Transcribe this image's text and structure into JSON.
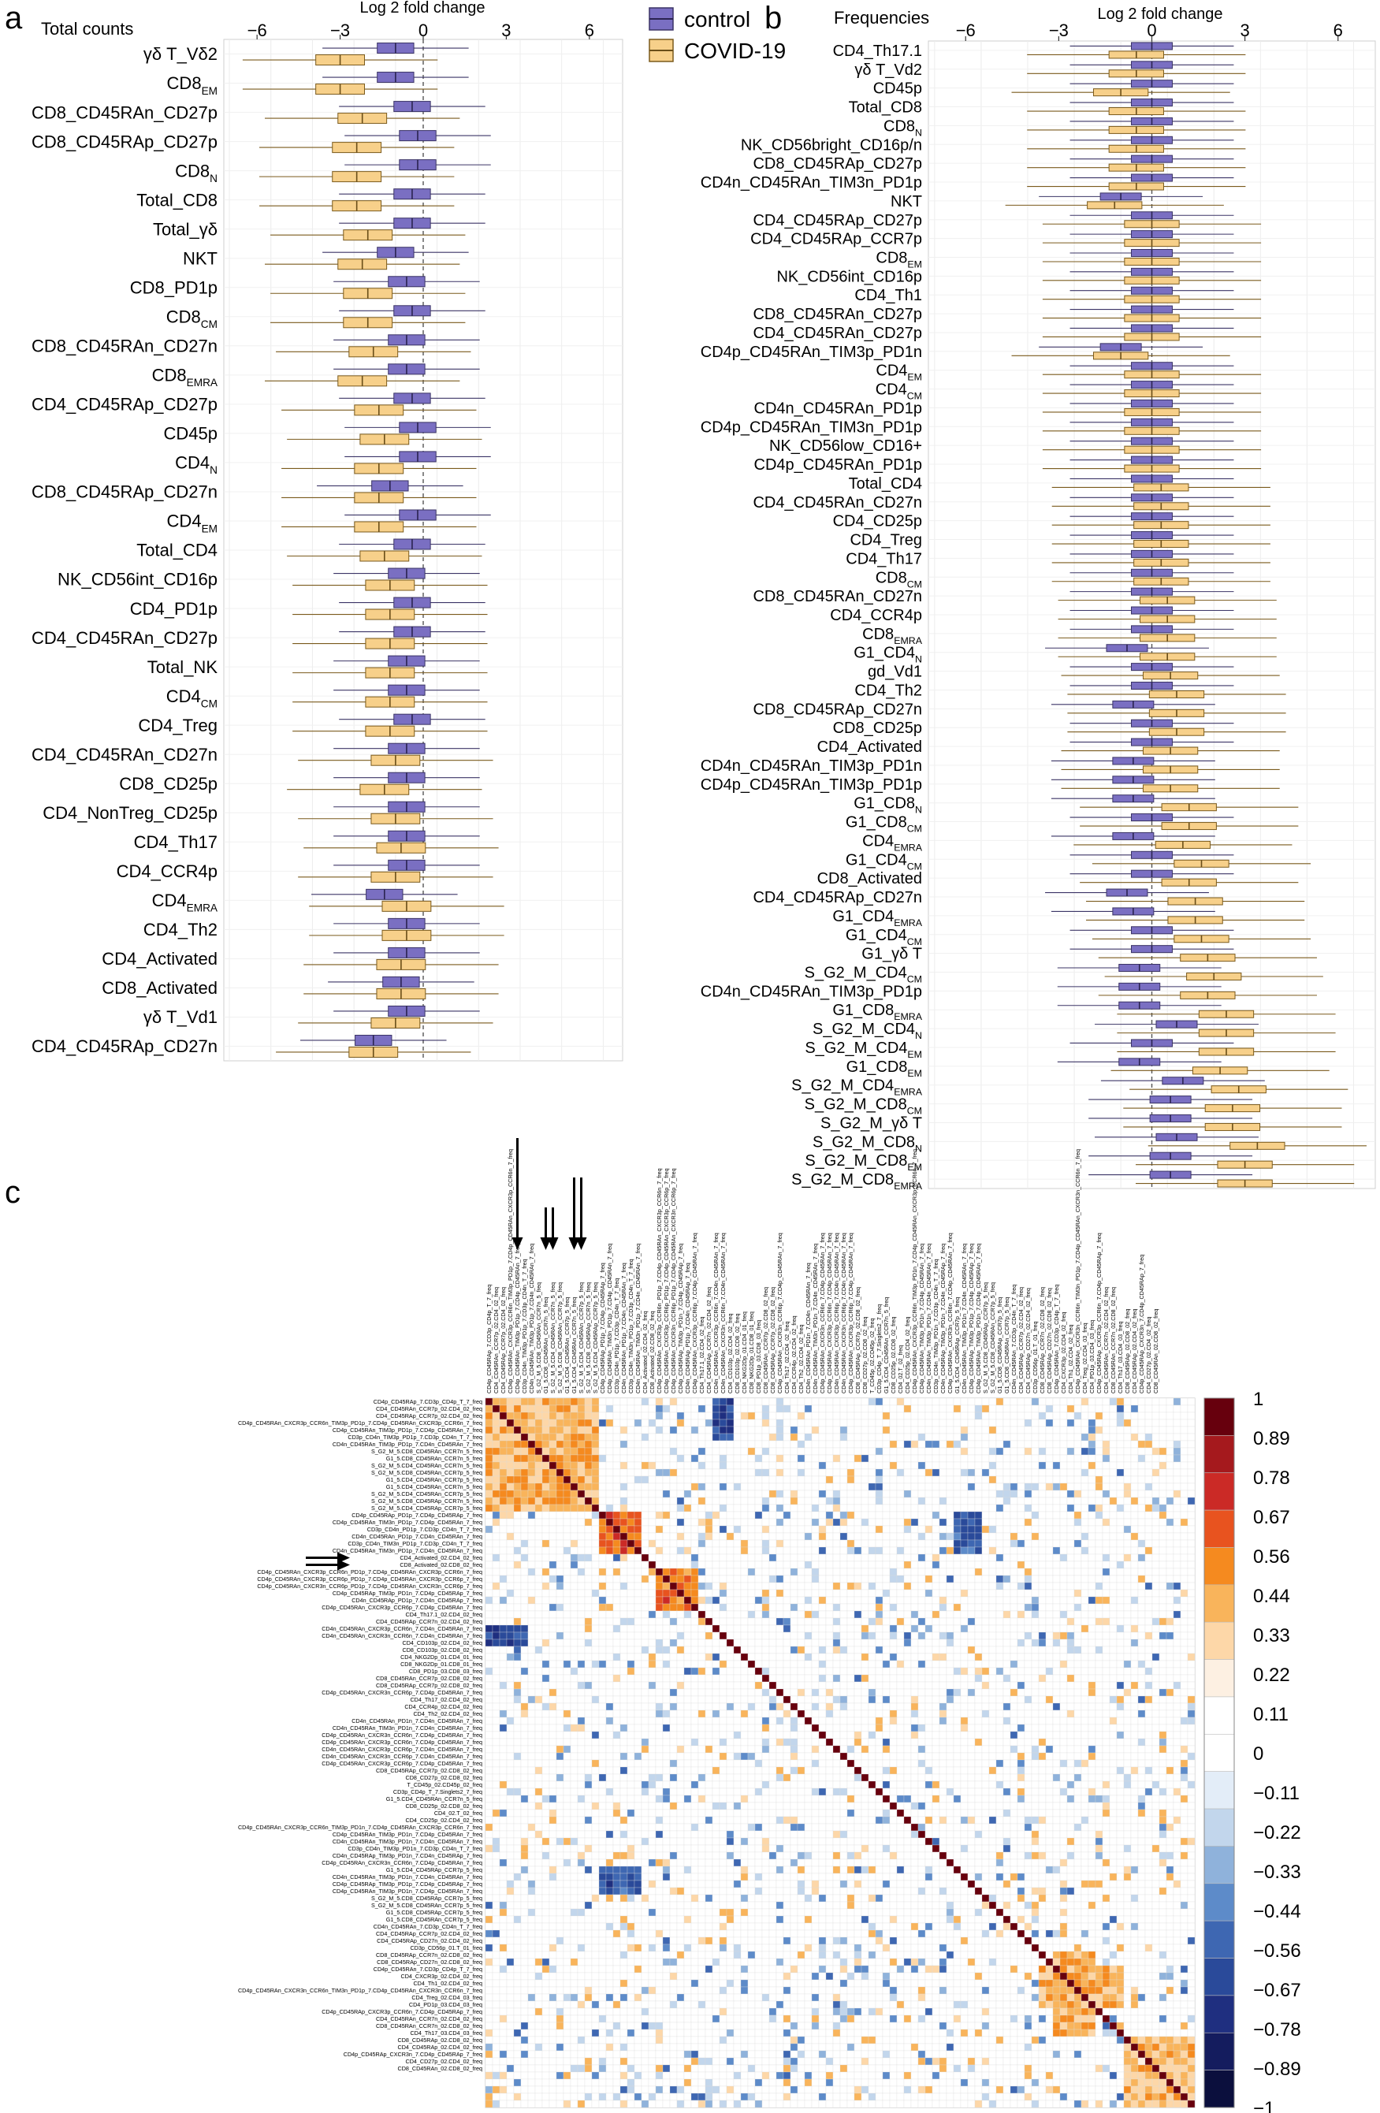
{
  "legend": {
    "items": [
      {
        "name": "control",
        "color": "#7a6fc2",
        "median": "#2a2350"
      },
      {
        "name": "COVID-19",
        "color": "#f7d08a",
        "median": "#6a4e18"
      }
    ]
  },
  "chart_data": [
    {
      "panel": "a",
      "type": "box",
      "title": "Total counts",
      "xlabel": "Log 2 fold change",
      "xlim": [
        -7.2,
        7.2
      ],
      "xticks": [
        -6,
        -3,
        0,
        3,
        6
      ],
      "orientation": "horizontal",
      "categories": [
        "γδ T_Vδ2",
        "CD8_EM",
        "CD8_CD45RAn_CD27p",
        "CD8_CD45RAp_CD27p",
        "CD8_N",
        "Total_CD8",
        "Total_γδ",
        "NKT",
        "CD8_PD1p",
        "CD8_CM",
        "CD8_CD45RAn_CD27n",
        "CD8_EMRA",
        "CD4_CD45RAp_CD27p",
        "CD45p",
        "CD4_N",
        "CD8_CD45RAp_CD27n",
        "CD4_EM",
        "Total_CD4",
        "NK_CD56int_CD16p",
        "CD4_PD1p",
        "CD4_CD45RAn_CD27p",
        "Total_NK",
        "CD4_CM",
        "CD4_Treg",
        "CD4_CD45RAn_CD27n",
        "CD8_CD25p",
        "CD4_NonTreg_CD25p",
        "CD4_Th17",
        "CD4_CCR4p",
        "CD4_EMRA",
        "CD4_Th2",
        "CD4_Activated",
        "CD8_Activated",
        "γδ T_Vd1",
        "CD4_CD45RAp_CD27n"
      ],
      "series": [
        {
          "name": "control",
          "medians": [
            -1.0,
            -1.0,
            -0.4,
            -0.2,
            -0.2,
            -0.4,
            -0.4,
            -1.0,
            -0.6,
            -0.4,
            -0.6,
            -0.6,
            -0.4,
            -0.2,
            -0.2,
            -1.2,
            -0.2,
            -0.4,
            -0.6,
            -0.4,
            -0.4,
            -0.6,
            -0.6,
            -0.4,
            -0.6,
            -0.6,
            -0.6,
            -0.6,
            -0.6,
            -1.4,
            -0.6,
            -0.6,
            -0.8,
            -0.6,
            -1.8
          ]
        },
        {
          "name": "COVID-19",
          "medians": [
            -3.0,
            -3.0,
            -2.2,
            -2.4,
            -2.4,
            -2.4,
            -2.0,
            -2.2,
            -2.0,
            -2.0,
            -1.8,
            -2.2,
            -1.6,
            -1.4,
            -1.6,
            -1.6,
            -1.6,
            -1.4,
            -1.2,
            -1.2,
            -1.2,
            -1.2,
            -1.2,
            -1.2,
            -1.0,
            -1.4,
            -1.0,
            -0.8,
            -1.0,
            -0.6,
            -0.6,
            -0.8,
            -0.8,
            -1.0,
            -1.8
          ]
        }
      ]
    },
    {
      "panel": "b",
      "type": "box",
      "title": "Frequencies",
      "xlabel": "Log 2 fold change",
      "xlim": [
        -7.2,
        7.2
      ],
      "xticks": [
        -6,
        -3,
        0,
        3,
        6
      ],
      "orientation": "horizontal",
      "categories": [
        "CD4_Th17.1",
        "γδ T_Vd2",
        "CD45p",
        "Total_CD8",
        "CD8_N",
        "NK_CD56bright_CD16p/n",
        "CD8_CD45RAp_CD27p",
        "CD4n_CD45RAn_TIM3n_PD1p",
        "NKT",
        "CD4_CD45RAp_CD27p",
        "CD4_CD45RAp_CCR7p",
        "CD8_EM",
        "NK_CD56int_CD16p",
        "CD4_Th1",
        "CD8_CD45RAn_CD27p",
        "CD4_CD45RAn_CD27p",
        "CD4p_CD45RAn_TIM3p_PD1n",
        "CD4_EM",
        "CD4_CM",
        "CD4n_CD45RAn_PD1p",
        "CD4p_CD45RAn_TIM3n_PD1p",
        "NK_CD56low_CD16+",
        "CD4p_CD45RAn_PD1p",
        "Total_CD4",
        "CD4_CD45RAn_CD27n",
        "CD4_CD25p",
        "CD4_Treg",
        "CD4_Th17",
        "CD8_CM",
        "CD8_CD45RAn_CD27n",
        "CD4_CCR4p",
        "CD8_EMRA",
        "G1_CD4_N",
        "gd_Vd1",
        "CD4_Th2",
        "CD8_CD45RAp_CD27n",
        "CD8_CD25p",
        "CD4_Activated",
        "CD4n_CD45RAn_TIM3p_PD1n",
        "CD4p_CD45RAn_TIM3p_PD1p",
        "G1_CD8_N",
        "G1_CD8_CM",
        "CD4_EMRA",
        "G1_CD4_CM",
        "CD8_Activated",
        "CD4_CD45RAp_CD27n",
        "G1_CD4_EMRA",
        "G1_CD4_CM",
        "G1_γδ T",
        "S_G2_M_CD4_CM",
        "CD4n_CD45RAn_TIM3p_PD1p",
        "G1_CD8_EMRA",
        "S_G2_M_CD4_N",
        "S_G2_M_CD4_EM",
        "G1_CD8_EM",
        "S_G2_M_CD4_EMRA",
        "S_G2_M_CD8_CM",
        "S_G2_M_γδ T",
        "S_G2_M_CD8_N",
        "S_G2_M_CD8_EM",
        "S_G2_M_CD8_EMRA"
      ],
      "series": [
        {
          "name": "control",
          "medians": [
            0.0,
            0.0,
            0.0,
            0.0,
            0.0,
            0.0,
            0.0,
            0.0,
            -1.0,
            0.0,
            0.0,
            0.0,
            0.0,
            0.0,
            0.0,
            0.0,
            -1.0,
            0.0,
            0.0,
            0.0,
            0.0,
            0.0,
            0.0,
            0.0,
            0.0,
            0.0,
            0.0,
            0.0,
            0.0,
            0.0,
            0.0,
            0.0,
            -0.8,
            0.0,
            0.0,
            -0.6,
            0.0,
            0.0,
            -0.6,
            -0.6,
            -0.6,
            0.0,
            -0.6,
            0.0,
            0.0,
            -0.8,
            -0.6,
            0.0,
            0.0,
            -0.4,
            -0.4,
            -0.4,
            0.8,
            0.0,
            -0.4,
            1.0,
            0.6,
            0.6,
            0.8,
            0.6,
            0.6
          ]
        },
        {
          "name": "COVID-19",
          "medians": [
            -0.5,
            -0.5,
            -1.0,
            -0.5,
            -0.5,
            -0.5,
            -0.5,
            -0.5,
            -1.2,
            0.0,
            0.0,
            0.0,
            0.0,
            0.0,
            0.0,
            0.0,
            -1.0,
            0.0,
            0.0,
            0.0,
            0.0,
            0.0,
            0.0,
            0.3,
            0.3,
            0.3,
            0.3,
            0.3,
            0.3,
            0.5,
            0.5,
            0.5,
            0.5,
            0.6,
            0.8,
            0.8,
            0.8,
            0.6,
            0.6,
            0.6,
            1.2,
            1.2,
            1.0,
            1.6,
            1.2,
            1.4,
            1.4,
            1.6,
            1.8,
            2.0,
            1.8,
            2.4,
            2.4,
            2.4,
            2.2,
            2.8,
            2.6,
            2.6,
            3.4,
            3.0,
            3.0
          ]
        }
      ]
    },
    {
      "panel": "c",
      "type": "heatmap",
      "title": "",
      "n_rows": 100,
      "n_cols": 100,
      "colorbar_ticks": [
        "1",
        "0.89",
        "0.78",
        "0.67",
        "0.56",
        "0.44",
        "0.33",
        "0.22",
        "0.11",
        "0",
        "−0.11",
        "−0.22",
        "−0.33",
        "−0.44",
        "−0.56",
        "−0.67",
        "−0.78",
        "−0.89",
        "−1"
      ],
      "colorbar_colors": [
        "#67000d",
        "#a5191d",
        "#cb2a26",
        "#e8531f",
        "#f58a1f",
        "#f9b45b",
        "#fdd7a8",
        "#fdf0e2",
        "#ffffff",
        "#ffffff",
        "#e3edf8",
        "#c2d6ec",
        "#8fb2db",
        "#5d8bc9",
        "#3e67b2",
        "#2a4a9a",
        "#1f2f80",
        "#141c5e",
        "#0b0f3d"
      ],
      "row_labels": [
        "CD4p_CD45RAp_7.CD3p_CD4p_T_7_freq",
        "CD4_CD45RAn_CCR7p_02.CD4_02_freq",
        "CD4_CD45RAp_CCR7p_02.CD4_02_freq",
        "CD4p_CD45RAn_CXCR3p_CCR6n_TIM3p_PD1p_7.CD4p_CD45RAn_CXCR3p_CCR6n_7_freq",
        "CD4p_CD45RAn_TIM3p_PD1p_7.CD4p_CD45RAn_7_freq",
        "CD3p_CD4n_TIM3p_PD1p_7.CD3p_CD4n_T_7_freq",
        "CD4n_CD45RAn_TIM3p_PD1p_7.CD4n_CD45RAn_7_freq",
        "S_G2_M_5.CD8_CD45RAn_CCR7n_5_freq",
        "G1_5.CD8_CD45RAn_CCR7n_5_freq",
        "S_G2_M_5.CD4_CD45RAn_CCR7n_5_freq",
        "S_G2_M_5.CD8_CD45RAn_CCR7p_5_freq",
        "G1_5.CD4_CD45RAn_CCR7p_5_freq",
        "G1_5.CD4_CD45RAn_CCR7n_5_freq",
        "S_G2_M_5.CD4_CD45RAn_CCR7p_5_freq",
        "S_G2_M_5.CD8_CD45RAp_CCR7n_5_freq",
        "S_G2_M_5.CD4_CD45RAp_CCR7p_5_freq",
        "CD4p_CD45RAp_PD1p_7.CD4p_CD45RAp_7_freq",
        "CD4p_CD45RAn_TIM3n_PD1p_7.CD4p_CD45RAn_7_freq",
        "CD3p_CD4n_PD1p_7.CD3p_CD4n_T_7_freq",
        "CD4n_CD45RAn_PD1p_7.CD4n_CD45RAn_7_freq",
        "CD3p_CD4n_TIM3n_PD1p_7.CD3p_CD4n_T_7_freq",
        "CD4n_CD45RAn_TIM3n_PD1p_7.CD4n_CD45RAn_7_freq",
        "CD4_Activated_02.CD4_02_freq",
        "CD8_Activated_02.CD8_02_freq",
        "CD4p_CD45RAn_CXCR3p_CCR6n_PD1p_7.CD4p_CD45RAn_CXCR3p_CCR6n_7_freq",
        "CD4p_CD45RAn_CXCR3p_CCR6p_PD1p_7.CD4p_CD45RAn_CXCR3p_CCR6p_7_freq",
        "CD4p_CD45RAn_CXCR3n_CCR6p_PD1p_7.CD4p_CD45RAn_CXCR3n_CCR6p_7_freq",
        "CD4p_CD45RAp_TIM3p_PD1n_7.CD4p_CD45RAp_7_freq",
        "CD4n_CD45RAp_PD1p_7.CD4n_CD45RAp_7_freq",
        "CD4p_CD45RAn_CXCR3p_CCR6p_7.CD4p_CD45RAn_7_freq",
        "CD4_Th17.1_02.CD4_02_freq",
        "CD4_CD45RAp_CCR7n_02.CD4_02_freq",
        "CD4n_CD45RAn_CXCR3p_CCR6n_7.CD4n_CD45RAn_7_freq",
        "CD4n_CD45RAn_CXCR3n_CCR6n_7.CD4n_CD45RAn_7_freq",
        "CD4_CD103p_02.CD4_02_freq",
        "CD8_CD103p_02.CD8_02_freq",
        "CD4_NKG2Dp_01.CD4_01_freq",
        "CD8_NKG2Dp_01.CD8_01_freq",
        "CD8_PD1p_03.CD8_03_freq",
        "CD8_CD45RAn_CCR7p_02.CD8_02_freq",
        "CD8_CD45RAp_CCR7p_02.CD8_02_freq",
        "CD4p_CD45RAn_CXCR3n_CCR6p_7.CD4p_CD45RAn_7_freq",
        "CD4_Th17_02.CD4_02_freq",
        "CD4_CCR4p_02.CD4_02_freq",
        "CD4_Th2_02.CD4_02_freq",
        "CD4n_CD45RAn_PD1n_7.CD4n_CD45RAn_7_freq",
        "CD4n_CD45RAn_TIM3n_PD1n_7.CD4n_CD45RAn_7_freq",
        "CD4p_CD45RAn_CXCR3n_CCR6n_7.CD4p_CD45RAn_7_freq",
        "CD4p_CD45RAn_CXCR3p_CCR6n_7.CD4p_CD45RAn_7_freq",
        "CD4n_CD45RAn_CXCR3p_CCR6p_7.CD4n_CD45RAn_7_freq",
        "CD4n_CD45RAn_CXCR3n_CCR6p_7.CD4n_CD45RAn_7_freq",
        "CD4p_CD45RAn_CXCR3p_CCR6p_7.CD4p_CD45RAn_7_freq",
        "CD8_CD45RAp_CCR7p_02.CD8_02_freq",
        "CD8_CD27p_02.CD8_02_freq",
        "T_CD45p_02.CD45p_02_freq",
        "CD3p_CD4p_T_7.Singlets2_7_freq",
        "G1_5.CD4_CD45RAn_CCR7n_5_freq",
        "CD8_CD25p_02.CD8_02_freq",
        "CD4_02.T_02_freq",
        "CD4_CD25p_02.CD4_02_freq",
        "CD4p_CD45RAn_CXCR3p_CCR6n_TIM3p_PD1n_7.CD4p_CD45RAn_CXCR3p_CCR6n_7_freq",
        "CD4p_CD45RAn_TIM3p_PD1n_7.CD4p_CD45RAn_7_freq",
        "CD4n_CD45RAn_TIM3p_PD1n_7.CD4n_CD45RAn_7_freq",
        "CD3p_CD4n_TIM3p_PD1n_7.CD3p_CD4n_T_7_freq",
        "CD4n_CD45RAp_TIM3p_PD1n_7.CD4n_CD45RAp_7_freq",
        "CD4p_CD45RAn_CXCR3n_CCR6n_7.CD4p_CD45RAn_7_freq",
        "G1_5.CD4_CD45RAp_CCR7p_5_freq",
        "CD4n_CD45RAn_TIM3p_PD1n_7.CD4n_CD45RAn_7_freq",
        "CD4p_CD45RAp_TIM3p_PD1p_7.CD4p_CD45RAp_7_freq",
        "CD4p_CD45RAn_TIM3p_PD1n_7.CD4p_CD45RAn_7_freq",
        "S_G2_M_5.CD8_CD45RAp_CCR7p_5_freq",
        "S_G2_M_5.CD8_CD45RAn_CCR7p_5_freq",
        "G1_5.CD8_CD45RAp_CCR7p_5_freq",
        "G1_5.CD8_CD45RAn_CCR7p_5_freq",
        "CD4n_CD45RAn_7.CD3p_CD4n_T_7_freq",
        "CD4_CD45RAp_CCR7p_02.CD4_02_freq",
        "CD4_CD45RAp_CD27n_02.CD4_02_freq",
        "CD3p_CD56p_01.T_01_freq",
        "CD8_CD45RAp_CCR7n_02.CD8_02_freq",
        "CD8_CD45RAp_CD27n_02.CD8_02_freq",
        "CD4p_CD45RAn_7.CD3p_CD4p_T_7_freq",
        "CD4_CXCR3p_02.CD4_02_freq",
        "CD4_Th1_02.CD4_02_freq",
        "CD4p_CD45RAn_CXCR3n_CCR6n_TIM3n_PD1p_7.CD4p_CD45RAn_CXCR3n_CCR6n_7_freq",
        "CD4_Treg_02.CD4_03_freq",
        "CD4_PD1p_03.CD4_03_freq",
        "CD4p_CD45RAp_CXCR3p_CCR6n_7.CD4p_CD45RAp_7_freq",
        "CD4_CD45RAn_CCR7n_02.CD4_02_freq",
        "CD8_CD45RAn_CCR7n_02.CD8_02_freq",
        "CD4_Th17_03.CD4_03_freq",
        "CD8_CD45RAp_02.CD8_02_freq",
        "CD4_CD45RAp_02.CD4_02_freq",
        "CD4p_CD45RAp_CXCR3n_7.CD4p_CD45RAp_7_freq",
        "CD4_CD27p_02.CD4_02_freq",
        "CD8_CD45RAn_02.CD8_02_freq"
      ],
      "col_labels": [
        "CD4p_CD45RAp_7.CD3p_CD4p_T_7_freq",
        "CD4_CD45RAn_CCR7p_02.CD4_02_freq",
        "CD4_CD45RAp_CCR7p_02.CD4_02_freq",
        "CD4p_CD45RAn_CXCR3p_CCR6n_TIM3p_PD1p_7.CD4p_CD45RAn_CXCR3p_CCR6n_7_freq",
        "CD4p_CD45RAn_TIM3p_PD1p_7.CD4p_CD45RAn_7_freq",
        "CD3p_CD4n_TIM3p_PD1p_7.CD3p_CD4n_T_7_freq",
        "CD4n_CD45RAn_TIM3p_PD1p_7.CD4n_CD45RAn_7_freq",
        "S_G2_M_5.CD8_CD45RAn_CCR7n_5_freq",
        "G1_5.CD8_CD45RAn_CCR7n_5_freq",
        "S_G2_M_5.CD4_CD45RAn_CCR7n_5_freq",
        "S_G2_M_5.CD8_CD45RAn_CCR7p_5_freq",
        "G1_5.CD4_CD45RAn_CCR7p_5_freq",
        "G1_5.CD4_CD45RAn_CCR7n_5_freq",
        "S_G2_M_5.CD4_CD45RAn_CCR7p_5_freq",
        "S_G2_M_5.CD8_CD45RAp_CCR7n_5_freq",
        "S_G2_M_5.CD4_CD45RAp_CCR7p_5_freq",
        "CD4p_CD45RAp_PD1p_7.CD4p_CD45RAp_7_freq",
        "CD4p_CD45RAn_TIM3n_PD1p_7.CD4p_CD45RAn_7_freq",
        "CD3p_CD4n_PD1p_7.CD3p_CD4n_T_7_freq",
        "CD4n_CD45RAn_PD1p_7.CD4n_CD45RAn_7_freq",
        "CD3p_CD4n_TIM3n_PD1p_7.CD3p_CD4n_T_7_freq",
        "CD4n_CD45RAn_TIM3n_PD1p_7.CD4n_CD45RAn_7_freq",
        "CD4_Activated_02.CD4_02_freq",
        "CD8_Activated_02.CD8_02_freq",
        "CD4p_CD45RAn_CXCR3p_CCR6n_PD1p_7.CD4p_CD45RAn_CXCR3p_CCR6n_7_freq",
        "CD4p_CD45RAn_CXCR3p_CCR6p_PD1p_7.CD4p_CD45RAn_CXCR3p_CCR6p_7_freq",
        "CD4p_CD45RAn_CXCR3n_CCR6p_PD1p_7.CD4p_CD45RAn_CXCR3n_CCR6p_7_freq",
        "CD4p_CD45RAp_TIM3p_PD1n_7.CD4p_CD45RAp_7_freq",
        "CD4n_CD45RAp_PD1p_7.CD4n_CD45RAp_7_freq",
        "CD4p_CD45RAn_CXCR3p_CCR6p_7.CD4p_CD45RAn_7_freq",
        "CD4_Th17.1_02.CD4_02_freq",
        "CD4_CD45RAp_CCR7n_02.CD4_02_freq",
        "CD4n_CD45RAn_CXCR3p_CCR6n_7.CD4n_CD45RAn_7_freq",
        "CD4n_CD45RAn_CXCR3n_CCR6n_7.CD4n_CD45RAn_7_freq",
        "CD4_CD103p_02.CD4_02_freq",
        "CD8_CD103p_02.CD8_02_freq",
        "CD4_NKG2Dp_01.CD4_01_freq",
        "CD8_NKG2Dp_01.CD8_01_freq",
        "CD8_PD1p_03.CD8_03_freq",
        "CD8_CD45RAn_CCR7p_02.CD8_02_freq",
        "CD8_CD45RAp_CCR7p_02.CD8_02_freq",
        "CD4p_CD45RAn_CXCR3n_CCR6p_7.CD4p_CD45RAn_7_freq",
        "CD4_Th17_02.CD4_02_freq",
        "CD4_CCR4p_02.CD4_02_freq",
        "CD4_Th2_02.CD4_02_freq",
        "CD4n_CD45RAn_PD1n_7.CD4n_CD45RAn_7_freq",
        "CD4n_CD45RAn_TIM3n_PD1n_7.CD4n_CD45RAn_7_freq",
        "CD4p_CD45RAn_CXCR3n_CCR6n_7.CD4p_CD45RAn_7_freq",
        "CD4p_CD45RAn_CXCR3p_CCR6n_7.CD4p_CD45RAn_7_freq",
        "CD4n_CD45RAn_CXCR3p_CCR6p_7.CD4n_CD45RAn_7_freq",
        "CD4n_CD45RAn_CXCR3n_CCR6p_7.CD4n_CD45RAn_7_freq",
        "CD4p_CD45RAn_CXCR3p_CCR6p_7.CD4p_CD45RAn_7_freq",
        "CD8_CD45RAp_CCR7p_02.CD8_02_freq",
        "CD8_CD27p_02.CD8_02_freq",
        "T_CD45p_02.CD45p_02_freq",
        "CD3p_CD4p_T_7.Singlets2_7_freq",
        "G1_5.CD4_CD45RAn_CCR7n_5_freq",
        "CD8_CD25p_02.CD8_02_freq",
        "CD4_02.T_02_freq",
        "CD4_CD25p_02.CD4_02_freq",
        "CD4p_CD45RAn_CXCR3p_CCR6n_TIM3p_PD1n_7.CD4p_CD45RAn_CXCR3p_CCR6n_7_freq",
        "CD4p_CD45RAn_TIM3p_PD1n_7.CD4p_CD45RAn_7_freq",
        "CD4n_CD45RAn_TIM3p_PD1n_7.CD4n_CD45RAn_7_freq",
        "CD3p_CD4n_TIM3p_PD1n_7.CD3p_CD4n_T_7_freq",
        "CD4n_CD45RAp_TIM3p_PD1n_7.CD4n_CD45RAp_7_freq",
        "CD4p_CD45RAn_CXCR3n_CCR6n_7.CD4p_CD45RAn_7_freq",
        "G1_5.CD4_CD45RAp_CCR7p_5_freq",
        "CD4n_CD45RAn_TIM3p_PD1n_7.CD4n_CD45RAn_7_freq",
        "CD4p_CD45RAp_TIM3p_PD1p_7.CD4p_CD45RAp_7_freq",
        "CD4p_CD45RAn_TIM3p_PD1n_7.CD4p_CD45RAn_7_freq",
        "S_G2_M_5.CD8_CD45RAp_CCR7p_5_freq",
        "S_G2_M_5.CD8_CD45RAn_CCR7p_5_freq",
        "G1_5.CD8_CD45RAp_CCR7p_5_freq",
        "G1_5.CD8_CD45RAn_CCR7p_5_freq",
        "CD4n_CD45RAn_7.CD3p_CD4n_T_7_freq",
        "CD4_CD45RAp_CCR7p_02.CD4_02_freq",
        "CD4_CD45RAp_CD27n_02.CD4_02_freq",
        "CD3p_CD56p_01.T_01_freq",
        "CD8_CD45RAp_CCR7n_02.CD8_02_freq",
        "CD8_CD45RAp_CD27n_02.CD8_02_freq",
        "CD4p_CD45RAn_7.CD3p_CD4p_T_7_freq",
        "CD4_CXCR3p_02.CD4_02_freq",
        "CD4_Th1_02.CD4_02_freq",
        "CD4p_CD45RAn_CXCR3n_CCR6n_TIM3n_PD1p_7.CD4p_CD45RAn_CXCR3n_CCR6n_7_freq",
        "CD4_Treg_02.CD4_03_freq",
        "CD4_PD1p_03.CD4_03_freq",
        "CD4p_CD45RAp_CXCR3p_CCR6n_7.CD4p_CD45RAp_7_freq",
        "CD4_CD45RAn_CCR7n_02.CD4_02_freq",
        "CD8_CD45RAn_CCR7n_02.CD8_02_freq",
        "CD4_Th17_03.CD4_03_freq",
        "CD8_CD45RAp_02.CD8_02_freq",
        "CD4_CD45RAp_02.CD4_02_freq",
        "CD4p_CD45RAp_CXCR3n_7.CD4p_CD45RAp_7_freq",
        "CD4_CD27p_02.CD4_02_freq",
        "CD8_CD45RAn_02.CD8_02_freq"
      ],
      "blocks": [
        {
          "rows": [
            0,
            16
          ],
          "cols": [
            0,
            16
          ],
          "value": 0.45
        },
        {
          "rows": [
            16,
            22
          ],
          "cols": [
            16,
            22
          ],
          "value": 0.65
        },
        {
          "rows": [
            24,
            30
          ],
          "cols": [
            24,
            30
          ],
          "value": 0.6
        },
        {
          "rows": [
            0,
            3
          ],
          "cols": [
            32,
            35
          ],
          "value": -0.7
        },
        {
          "rows": [
            32,
            35
          ],
          "cols": [
            0,
            6
          ],
          "value": -0.65
        },
        {
          "rows": [
            16,
            22
          ],
          "cols": [
            66,
            70
          ],
          "value": -0.6
        },
        {
          "rows": [
            80,
            86
          ],
          "cols": [
            78,
            90
          ],
          "value": 0.45
        },
        {
          "rows": [
            90,
            100
          ],
          "cols": [
            90,
            100
          ],
          "value": 0.4
        }
      ],
      "annotations": [
        "vertical arrows above columns 4, 8, 9, 12, 13",
        "horizontal arrows left of rows 22, 23"
      ]
    }
  ],
  "panel_labels": {
    "a": "a",
    "b": "b",
    "c": "c"
  },
  "axes_text": {
    "a_xlabel": "Log 2 fold change",
    "b_xlabel": "Log 2 fold change",
    "a_title": "Total counts",
    "b_title": "Frequencies"
  }
}
